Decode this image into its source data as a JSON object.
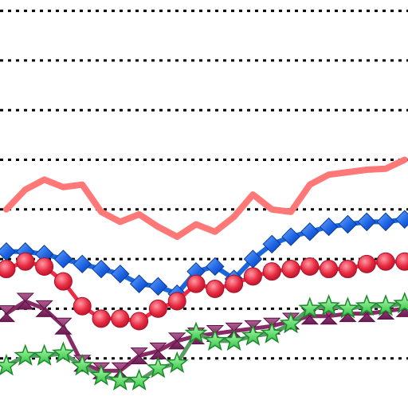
{
  "chart_data": {
    "type": "line",
    "title": "",
    "xlabel": "",
    "ylabel": "",
    "grid": "horizontal-dotted",
    "legend": "none",
    "ylim": [
      0,
      8
    ],
    "gridlines": [
      1,
      2,
      3,
      4,
      5,
      6,
      7,
      8
    ],
    "x": [
      0,
      1,
      2,
      3,
      4,
      5,
      6,
      7,
      8,
      9,
      10,
      11,
      12,
      13,
      14,
      15,
      16,
      17,
      18,
      19,
      20,
      21
    ],
    "series": [
      {
        "color": "#ff7878",
        "marker": "none",
        "width": 8,
        "values": [
          4.0,
          4.4,
          4.6,
          4.45,
          4.5,
          3.95,
          3.75,
          3.9,
          3.65,
          3.45,
          3.7,
          3.55,
          3.85,
          4.3,
          4.0,
          3.95,
          4.5,
          4.7,
          4.75,
          4.8,
          4.82,
          5.0
        ]
      },
      {
        "color": "#1a66dd",
        "marker": "diamond",
        "width": 6,
        "values": [
          3.15,
          3.15,
          3.1,
          3.0,
          2.9,
          2.8,
          2.7,
          2.5,
          2.45,
          2.3,
          2.75,
          2.85,
          2.6,
          3.0,
          3.3,
          3.45,
          3.55,
          3.65,
          3.7,
          3.75,
          3.75,
          3.8
        ]
      },
      {
        "color": "#ee2a44",
        "marker": "circle",
        "width": 5,
        "values": [
          2.8,
          2.95,
          2.85,
          2.55,
          2.05,
          1.8,
          1.8,
          1.75,
          2.0,
          2.15,
          2.5,
          2.4,
          2.5,
          2.65,
          2.75,
          2.8,
          2.85,
          2.8,
          2.8,
          2.9,
          2.95,
          2.95
        ]
      },
      {
        "color": "#882a66",
        "marker": "bowtie",
        "width": 5,
        "values": [
          1.9,
          2.15,
          2.0,
          1.65,
          0.9,
          0.75,
          0.75,
          1.05,
          1.15,
          1.35,
          1.45,
          1.5,
          1.55,
          1.6,
          1.65,
          1.75,
          1.85,
          1.85,
          1.9,
          1.9,
          1.95,
          2.0
        ]
      },
      {
        "color": "#5a9a66",
        "marker": "star",
        "width": 5,
        "values": [
          0.85,
          1.05,
          1.05,
          1.1,
          0.85,
          0.65,
          0.55,
          0.55,
          0.8,
          0.9,
          1.5,
          1.35,
          1.35,
          1.45,
          1.5,
          1.7,
          2.0,
          2.05,
          2.0,
          2.05,
          2.05,
          2.1
        ]
      }
    ]
  }
}
